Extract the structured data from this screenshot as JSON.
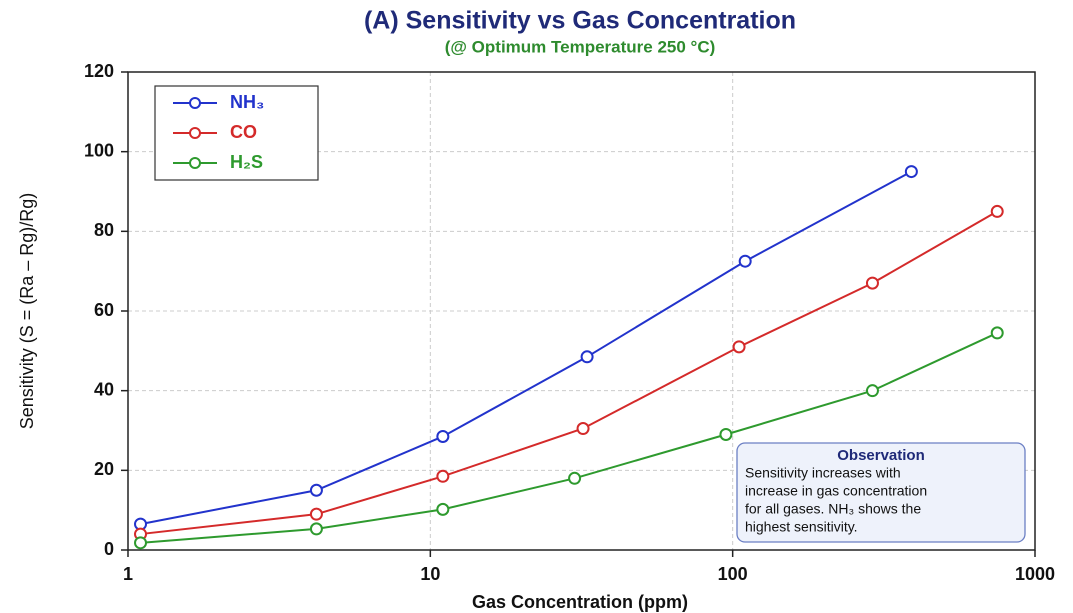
{
  "chart_data": {
    "type": "line",
    "title": "(A) Sensitivity vs Gas Concentration",
    "subtitle": "(@ Optimum Temperature 250 °C)",
    "xlabel": "Gas Concentration (ppm)",
    "ylabel": "Sensitivity (S = (Ra – Rg)/Rg)",
    "xscale": "log",
    "xlim": [
      1,
      1000
    ],
    "xticks": [
      1,
      10,
      100,
      1000
    ],
    "ylim": [
      0,
      120
    ],
    "yticks": [
      0,
      20,
      40,
      60,
      80,
      100,
      120
    ],
    "grid": true,
    "legend": "upper left",
    "series": [
      {
        "name": "NH₃",
        "color": "#2233cc",
        "x": [
          1.1,
          4.2,
          11,
          33,
          110,
          390
        ],
        "values": [
          6.5,
          15,
          28.5,
          48.5,
          72.5,
          95
        ]
      },
      {
        "name": "CO",
        "color": "#d42a2a",
        "x": [
          1.1,
          4.2,
          11,
          32,
          105,
          290,
          750
        ],
        "values": [
          4,
          9,
          18.5,
          30.5,
          51,
          67,
          85
        ]
      },
      {
        "name": "H₂S",
        "color": "#2e9a2e",
        "x": [
          1.1,
          4.2,
          11,
          30,
          95,
          290,
          750
        ],
        "values": [
          1.8,
          5.3,
          10.2,
          18,
          29,
          40,
          54.5
        ]
      }
    ],
    "annotation": {
      "title": "Observation",
      "lines": [
        "Sensitivity increases with",
        "increase in gas concentration",
        "for all gases. NH₃ shows the",
        "highest sensitivity."
      ]
    }
  }
}
